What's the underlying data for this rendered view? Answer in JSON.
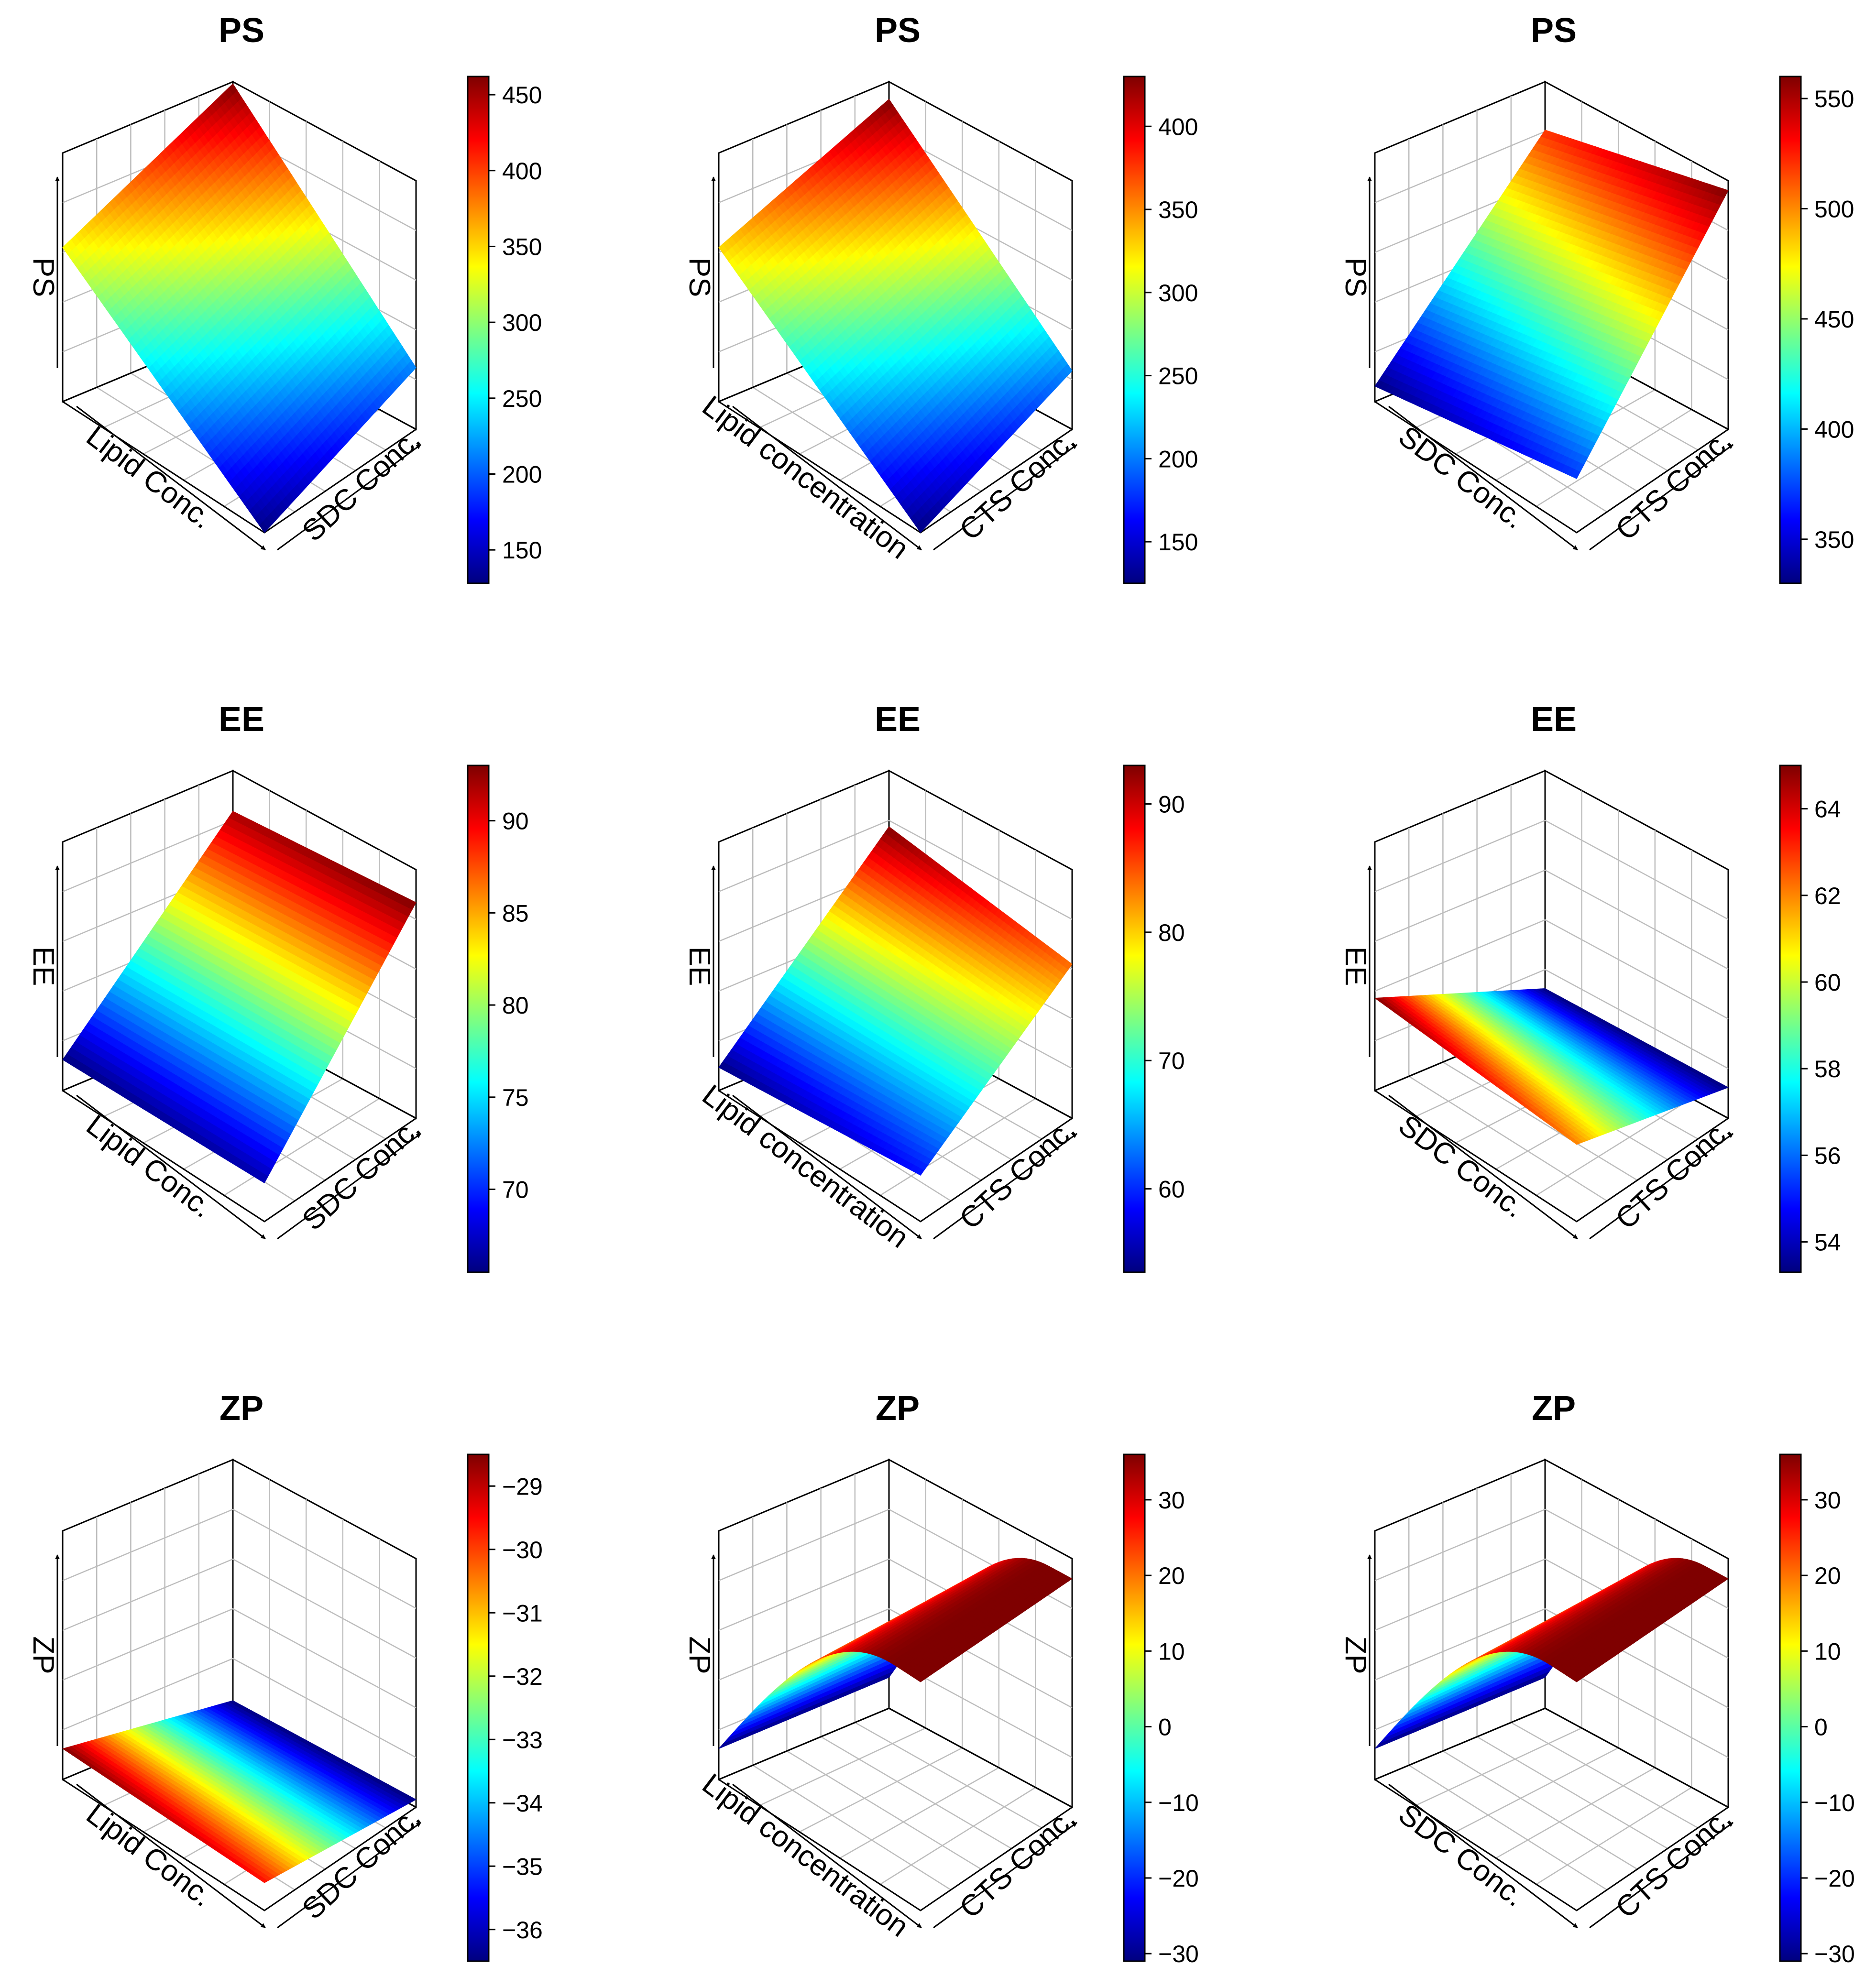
{
  "figure": {
    "layout": "3x3 grid of 3D response surface plots with color bars"
  },
  "colors": {
    "jet": [
      "#00007f",
      "#0000ff",
      "#007fff",
      "#00ffff",
      "#7fff7f",
      "#ffff00",
      "#ff7f00",
      "#ff0000",
      "#7f0000"
    ],
    "frame": "#000000",
    "grid": "#bdbdbd"
  },
  "chart_data": [
    {
      "type": "surface3d",
      "title": "PS",
      "xlabel": "Lipid Conc.",
      "ylabel": "SDC Conc.",
      "zlabel": "PS",
      "variant": "plane",
      "corners": {
        "left": 1.0,
        "front": 0.0,
        "right": 0.4,
        "back": 1.6
      },
      "colorbar": {
        "min": 128,
        "max": 462,
        "ticks": [
          150,
          200,
          250,
          300,
          350,
          400,
          450
        ]
      }
    },
    {
      "type": "surface3d",
      "title": "PS",
      "xlabel": "Lipid concentration",
      "ylabel": "CTS Conc.",
      "zlabel": "PS",
      "variant": "plane",
      "corners": {
        "left": 1.0,
        "front": 0.0,
        "right": 0.38,
        "back": 1.5
      },
      "colorbar": {
        "min": 125,
        "max": 430,
        "ticks": [
          150,
          200,
          250,
          300,
          350,
          400
        ]
      }
    },
    {
      "type": "surface3d",
      "title": "PS",
      "xlabel": "SDC Conc.",
      "ylabel": "CTS Conc.",
      "zlabel": "PS",
      "variant": "plane",
      "corners": {
        "left": 0.1,
        "front": 0.35,
        "right": 1.55,
        "back": 1.3
      },
      "colorbar": {
        "min": 330,
        "max": 560,
        "ticks": [
          350,
          400,
          450,
          500,
          550
        ]
      }
    },
    {
      "type": "surface3d",
      "title": "EE",
      "xlabel": "Lipid Conc.",
      "ylabel": "SDC Conc.",
      "zlabel": "EE",
      "variant": "plane",
      "corners": {
        "left": 0.2,
        "front": 0.25,
        "right": 1.4,
        "back": 1.35
      },
      "colorbar": {
        "min": 65.5,
        "max": 93,
        "ticks": [
          70,
          75,
          80,
          85,
          90
        ]
      }
    },
    {
      "type": "surface3d",
      "title": "EE",
      "xlabel": "Lipid concentration",
      "ylabel": "CTS Conc.",
      "zlabel": "EE",
      "variant": "plane",
      "corners": {
        "left": 0.15,
        "front": 0.3,
        "right": 1.0,
        "back": 1.25
      },
      "colorbar": {
        "min": 53.5,
        "max": 93,
        "ticks": [
          60,
          70,
          80,
          90
        ]
      }
    },
    {
      "type": "surface3d",
      "title": "EE",
      "xlabel": "SDC Conc.",
      "ylabel": "CTS Conc.",
      "zlabel": "EE",
      "variant": "plane",
      "corners": {
        "left": 0.6,
        "front": 0.5,
        "right": 0.2,
        "back": 0.2
      },
      "colorbar": {
        "min": 53.3,
        "max": 65,
        "ticks": [
          54,
          56,
          58,
          60,
          62,
          64
        ]
      }
    },
    {
      "type": "surface3d",
      "title": "ZP",
      "xlabel": "Lipid Conc.",
      "ylabel": "SDC Conc.",
      "zlabel": "ZP",
      "variant": "plane",
      "corners": {
        "left": 0.2,
        "front": 0.18,
        "right": 0.05,
        "back": 0.05
      },
      "colorbar": {
        "min": -36.5,
        "max": -28.5,
        "ticks": [
          -29,
          -30,
          -31,
          -32,
          -33,
          -34,
          -35,
          -36
        ]
      }
    },
    {
      "type": "surface3d",
      "title": "ZP",
      "xlabel": "Lipid concentration",
      "ylabel": "CTS Conc.",
      "zlabel": "ZP",
      "variant": "arch",
      "corners": {
        "left": 0.2,
        "front": 0.2,
        "right": 1.4,
        "back": 1.55
      },
      "colorbar": {
        "min": -31,
        "max": 36,
        "ticks": [
          30,
          20,
          10,
          0,
          -10,
          -20,
          -30
        ]
      }
    },
    {
      "type": "surface3d",
      "title": "ZP",
      "xlabel": "SDC Conc.",
      "ylabel": "CTS Conc.",
      "zlabel": "ZP",
      "variant": "arch",
      "corners": {
        "left": 0.2,
        "front": 0.2,
        "right": 1.4,
        "back": 1.55
      },
      "colorbar": {
        "min": -31,
        "max": 36,
        "ticks": [
          30,
          20,
          10,
          0,
          -10,
          -20,
          -30
        ]
      }
    }
  ]
}
